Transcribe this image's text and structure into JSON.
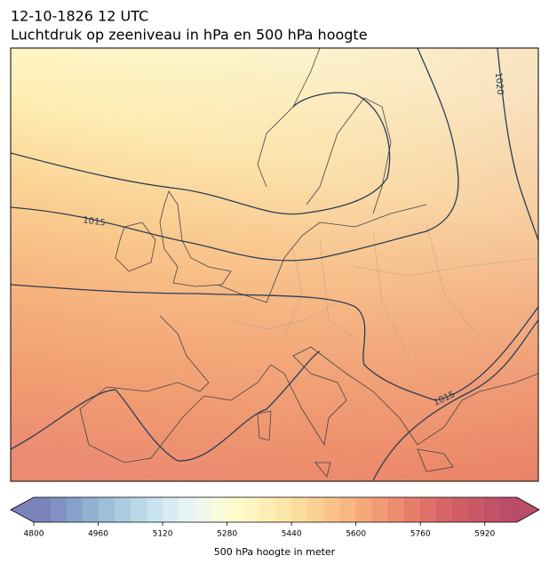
{
  "header": {
    "title": "12-10-1826 12 UTC",
    "subtitle": "Luchtdruk op zeeniveau in hPa en 500 hPa hoogte"
  },
  "contour_labels": [
    "1015",
    "1015",
    "1020"
  ],
  "colorbar": {
    "label": "500 hPa hoogte in meter",
    "min": 4800,
    "max": 6000,
    "ticks": [
      4800,
      4960,
      5120,
      5280,
      5440,
      5600,
      5760,
      5920
    ],
    "colors": [
      "#6b74b3",
      "#7285bb",
      "#7b97c4",
      "#86a8cc",
      "#94b8d5",
      "#a3c7dd",
      "#b3d4e6",
      "#c3e0ed",
      "#d3eaf2",
      "#e2f2f4",
      "#eef7ea",
      "#f8fbd6",
      "#fefbc8",
      "#fef4ba",
      "#feecad",
      "#fde3a0",
      "#fcd794",
      "#fbcb88",
      "#f9bd7e",
      "#f7ae74",
      "#f49e6c",
      "#f08f65",
      "#ea7f60",
      "#e3705b",
      "#db6258",
      "#d35757",
      "#cb4d57",
      "#c34658",
      "#bb3f58",
      "#b33a58"
    ]
  }
}
